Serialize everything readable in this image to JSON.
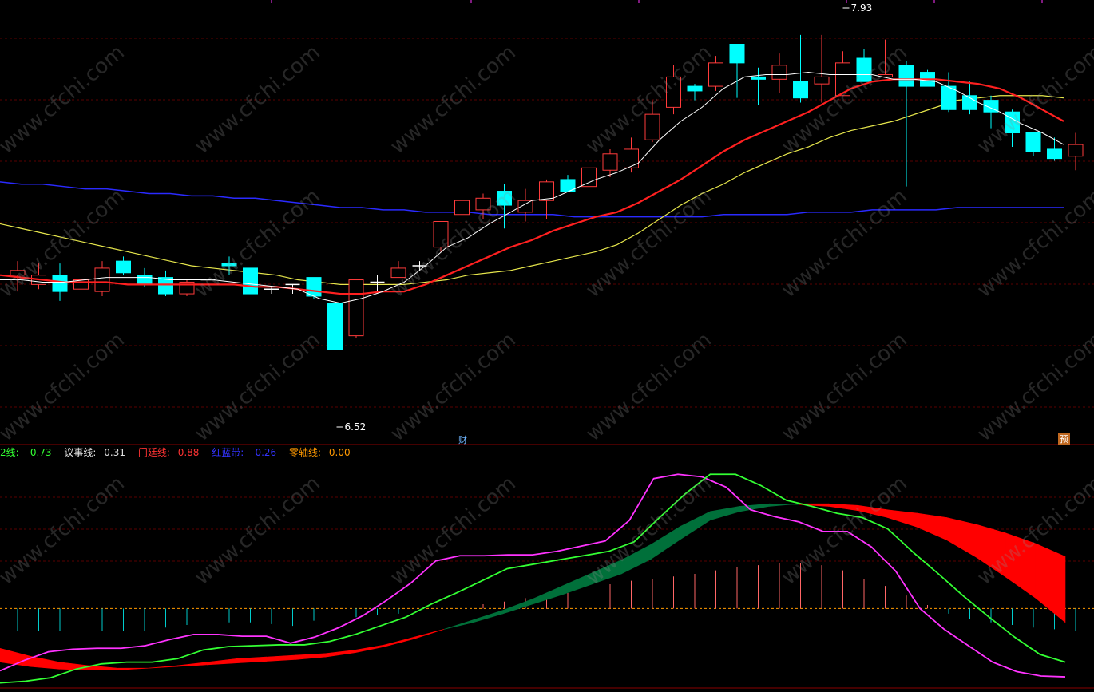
{
  "watermark": "www.cfchi.com",
  "markers": {
    "financial": "财",
    "forecast": "预"
  },
  "price_high_label": "7.93",
  "price_low_label": "6.52",
  "indicator_legend": [
    {
      "label": "2线:",
      "value": "-0.73",
      "color": "#33ff33"
    },
    {
      "label": "议事线:",
      "value": "0.31",
      "color": "#e0e0e0"
    },
    {
      "label": "门廷线:",
      "value": "0.88",
      "color": "#ff3333"
    },
    {
      "label": "红蓝带:",
      "value": "-0.26",
      "color": "#3333ff"
    },
    {
      "label": "零轴线:",
      "value": "0.00",
      "color": "#ff9900"
    }
  ],
  "colors": {
    "up": "#ff3b3b",
    "down": "#00ffff",
    "ma_white": "#ffffff",
    "ma_red": "#ff2020",
    "ma_yellow": "#e6e64c",
    "ma_blue": "#2a2aff",
    "magenta": "#ff33ff",
    "green": "#33ff33",
    "band_red": "#ff0000",
    "band_green": "#00703a",
    "zero": "#ff9900"
  },
  "chart_data": {
    "type": "candlestick",
    "price_ylim": [
      6.2,
      8.1
    ],
    "candles": [
      [
        6.92,
        6.94,
        6.98,
        6.85
      ],
      [
        6.88,
        6.92,
        6.97,
        6.86
      ],
      [
        6.92,
        6.85,
        6.97,
        6.81
      ],
      [
        6.86,
        6.9,
        6.97,
        6.82
      ],
      [
        6.85,
        6.95,
        6.98,
        6.83
      ],
      [
        6.98,
        6.93,
        7.0,
        6.92
      ],
      [
        6.92,
        6.88,
        6.95,
        6.87
      ],
      [
        6.91,
        6.84,
        6.94,
        6.83
      ],
      [
        6.84,
        6.89,
        6.9,
        6.83
      ],
      [
        6.9,
        6.9,
        6.97,
        6.86
      ],
      [
        6.97,
        6.96,
        7.0,
        6.92
      ],
      [
        6.95,
        6.84,
        6.95,
        6.84
      ],
      [
        6.86,
        6.86,
        6.87,
        6.84
      ],
      [
        6.88,
        6.88,
        6.88,
        6.84
      ],
      [
        6.91,
        6.83,
        6.91,
        6.82
      ],
      [
        6.8,
        6.6,
        6.8,
        6.55
      ],
      [
        6.66,
        6.9,
        6.9,
        6.65
      ],
      [
        6.89,
        6.89,
        6.92,
        6.84
      ],
      [
        6.91,
        6.95,
        6.98,
        6.91
      ],
      [
        6.96,
        6.96,
        6.98,
        6.94
      ],
      [
        7.04,
        7.15,
        7.15,
        7.02
      ],
      [
        7.18,
        7.24,
        7.31,
        7.12
      ],
      [
        7.2,
        7.25,
        7.27,
        7.16
      ],
      [
        7.28,
        7.22,
        7.31,
        7.12
      ],
      [
        7.19,
        7.24,
        7.29,
        7.15
      ],
      [
        7.24,
        7.32,
        7.33,
        7.16
      ],
      [
        7.33,
        7.28,
        7.35,
        7.28
      ],
      [
        7.3,
        7.38,
        7.46,
        7.28
      ],
      [
        7.37,
        7.44,
        7.46,
        7.34
      ],
      [
        7.38,
        7.46,
        7.51,
        7.36
      ],
      [
        7.5,
        7.61,
        7.67,
        7.49
      ],
      [
        7.64,
        7.77,
        7.82,
        7.61
      ],
      [
        7.73,
        7.71,
        7.74,
        7.67
      ],
      [
        7.73,
        7.83,
        7.86,
        7.71
      ],
      [
        7.91,
        7.83,
        7.91,
        7.68
      ],
      [
        7.77,
        7.76,
        7.81,
        7.65
      ],
      [
        7.76,
        7.82,
        7.87,
        7.7
      ],
      [
        7.75,
        7.68,
        7.95,
        7.66
      ],
      [
        7.74,
        7.77,
        7.95,
        7.66
      ],
      [
        7.69,
        7.83,
        7.88,
        7.69
      ],
      [
        7.85,
        7.75,
        7.89,
        7.75
      ],
      [
        7.77,
        7.78,
        7.93,
        7.77
      ],
      [
        7.82,
        7.73,
        7.84,
        7.3
      ],
      [
        7.79,
        7.73,
        7.8,
        7.73
      ],
      [
        7.73,
        7.63,
        7.79,
        7.62
      ],
      [
        7.69,
        7.63,
        7.75,
        7.61
      ],
      [
        7.67,
        7.62,
        7.69,
        7.55
      ],
      [
        7.62,
        7.53,
        7.63,
        7.47
      ],
      [
        7.53,
        7.45,
        7.53,
        7.43
      ],
      [
        7.46,
        7.42,
        7.51,
        7.41
      ],
      [
        7.43,
        7.48,
        7.53,
        7.37
      ]
    ],
    "ma_white": [
      6.9,
      6.9,
      6.89,
      6.89,
      6.9,
      6.91,
      6.91,
      6.91,
      6.9,
      6.9,
      6.9,
      6.89,
      6.88,
      6.87,
      6.86,
      6.82,
      6.8,
      6.82,
      6.85,
      6.89,
      6.96,
      7.04,
      7.08,
      7.14,
      7.19,
      7.24,
      7.25,
      7.29,
      7.33,
      7.36,
      7.4,
      7.5,
      7.58,
      7.64,
      7.72,
      7.77,
      7.78,
      7.78,
      7.79,
      7.78,
      7.78,
      7.78,
      7.76,
      7.76,
      7.75,
      7.71,
      7.66,
      7.62,
      7.57,
      7.53,
      7.48
    ],
    "ma_red": [
      6.92,
      6.91,
      6.9,
      6.89,
      6.89,
      6.89,
      6.88,
      6.88,
      6.88,
      6.88,
      6.88,
      6.88,
      6.87,
      6.87,
      6.86,
      6.85,
      6.84,
      6.84,
      6.85,
      6.85,
      6.88,
      6.92,
      6.96,
      7.0,
      7.04,
      7.07,
      7.11,
      7.14,
      7.17,
      7.19,
      7.23,
      7.28,
      7.33,
      7.39,
      7.45,
      7.5,
      7.54,
      7.58,
      7.62,
      7.67,
      7.72,
      7.75,
      7.76,
      7.76,
      7.76,
      7.75,
      7.74,
      7.72,
      7.68,
      7.63,
      7.58
    ],
    "ma_yellow": [
      7.14,
      7.12,
      7.1,
      7.08,
      7.06,
      7.04,
      7.02,
      7.0,
      6.98,
      6.96,
      6.95,
      6.94,
      6.93,
      6.92,
      6.9,
      6.89,
      6.88,
      6.88,
      6.88,
      6.88,
      6.89,
      6.9,
      6.92,
      6.93,
      6.94,
      6.96,
      6.98,
      7.0,
      7.02,
      7.05,
      7.1,
      7.16,
      7.22,
      7.27,
      7.31,
      7.36,
      7.4,
      7.44,
      7.47,
      7.51,
      7.54,
      7.56,
      7.58,
      7.61,
      7.64,
      7.67,
      7.68,
      7.69,
      7.69,
      7.69,
      7.68
    ],
    "ma_blue": [
      7.32,
      7.31,
      7.31,
      7.3,
      7.29,
      7.29,
      7.28,
      7.27,
      7.27,
      7.26,
      7.26,
      7.25,
      7.25,
      7.24,
      7.23,
      7.22,
      7.21,
      7.21,
      7.2,
      7.2,
      7.19,
      7.19,
      7.19,
      7.18,
      7.18,
      7.18,
      7.18,
      7.17,
      7.17,
      7.17,
      7.17,
      7.17,
      7.17,
      7.17,
      7.18,
      7.18,
      7.18,
      7.18,
      7.19,
      7.19,
      7.19,
      7.2,
      7.2,
      7.2,
      7.2,
      7.21,
      7.21,
      7.21,
      7.21,
      7.21,
      7.21
    ],
    "indicator_ylim": [
      -0.9,
      1.7
    ],
    "magenta": [
      -0.72,
      -0.6,
      -0.5,
      -0.47,
      -0.46,
      -0.46,
      -0.43,
      -0.36,
      -0.3,
      -0.3,
      -0.32,
      -0.32,
      -0.4,
      -0.33,
      -0.22,
      -0.08,
      0.1,
      0.3,
      0.55,
      0.61,
      0.61,
      0.62,
      0.62,
      0.66,
      0.72,
      0.78,
      1.02,
      1.5,
      1.55,
      1.52,
      1.4,
      1.14,
      1.06,
      1.0,
      0.89,
      0.89,
      0.71,
      0.43,
      0.0,
      -0.24,
      -0.43,
      -0.62,
      -0.73,
      -0.78,
      -0.79
    ],
    "green": [
      -0.86,
      -0.84,
      -0.8,
      -0.7,
      -0.64,
      -0.62,
      -0.62,
      -0.58,
      -0.48,
      -0.44,
      -0.43,
      -0.42,
      -0.42,
      -0.38,
      -0.3,
      -0.2,
      -0.1,
      0.05,
      0.18,
      0.32,
      0.46,
      0.51,
      0.56,
      0.61,
      0.66,
      0.77,
      1.05,
      1.32,
      1.55,
      1.55,
      1.42,
      1.25,
      1.18,
      1.1,
      1.05,
      0.92,
      0.65,
      0.4,
      0.14,
      -0.1,
      -0.33,
      -0.53,
      -0.62
    ],
    "band_upper": [
      -0.46,
      -0.55,
      -0.62,
      -0.66,
      -0.69,
      -0.69,
      -0.66,
      -0.62,
      -0.58,
      -0.56,
      -0.54,
      -0.52,
      -0.48,
      -0.42,
      -0.33,
      -0.24,
      -0.16,
      -0.06,
      0.05,
      0.16,
      0.28,
      0.4,
      0.57,
      0.8,
      1.02,
      1.12,
      1.18,
      1.21,
      1.21,
      1.19,
      1.14,
      1.1,
      1.05,
      0.97,
      0.87,
      0.75,
      0.6
    ],
    "band_lower": [
      -0.62,
      -0.67,
      -0.7,
      -0.71,
      -0.71,
      -0.69,
      -0.67,
      -0.65,
      -0.63,
      -0.61,
      -0.59,
      -0.56,
      -0.51,
      -0.44,
      -0.35,
      -0.24,
      -0.13,
      -0.02,
      0.11,
      0.26,
      0.41,
      0.56,
      0.74,
      0.95,
      1.12,
      1.18,
      1.21,
      1.2,
      1.18,
      1.13,
      1.05,
      0.94,
      0.79,
      0.59,
      0.36,
      0.12,
      -0.16
    ],
    "volume_bars": [
      -0.26,
      -0.26,
      -0.26,
      -0.26,
      -0.26,
      -0.26,
      -0.26,
      -0.22,
      -0.19,
      -0.16,
      -0.16,
      -0.16,
      -0.18,
      -0.2,
      -0.14,
      -0.12,
      -0.1,
      -0.07,
      -0.06,
      0.0,
      0.0,
      0.03,
      0.05,
      0.08,
      0.12,
      0.15,
      0.18,
      0.22,
      0.28,
      0.32,
      0.34,
      0.37,
      0.4,
      0.44,
      0.48,
      0.5,
      0.52,
      0.52,
      0.5,
      0.44,
      0.34,
      0.26,
      0.15,
      0.04,
      -0.06,
      -0.12,
      -0.16,
      -0.19,
      -0.22,
      -0.24,
      -0.26
    ]
  }
}
